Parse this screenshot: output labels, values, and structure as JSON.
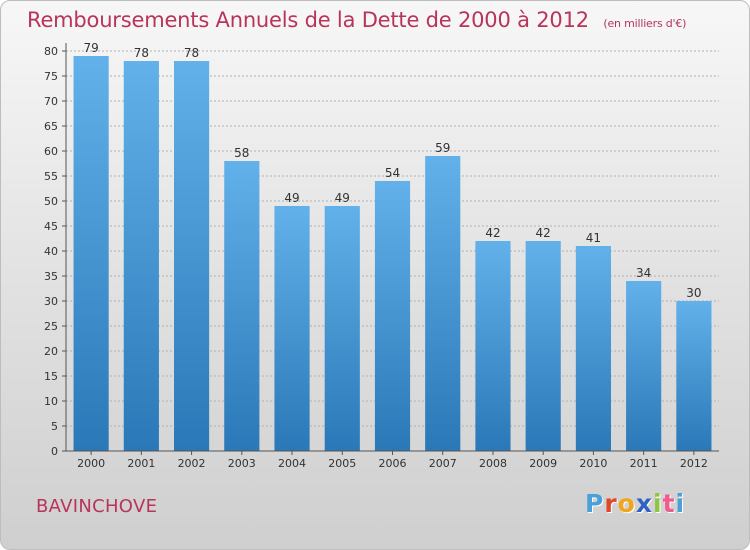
{
  "header": {
    "title": "Remboursements Annuels de la Dette de 2000 à 2012",
    "unit": "(en milliers d'€)"
  },
  "footer": {
    "place": "BAVINCHOVE",
    "logo": {
      "letters": [
        "P",
        "r",
        "o",
        "x",
        "i",
        "t",
        "i"
      ],
      "colors": [
        "#4aa0d8",
        "#e0462a",
        "#f0a51c",
        "#2f62c4",
        "#8dc63f",
        "#f05a8c",
        "#4aa0d8"
      ]
    }
  },
  "colors": {
    "title": "#b8345a",
    "bar_light": "#62b1ea",
    "bar_dark": "#2a78b7",
    "axis": "#555555",
    "grid": "#b0b0b0"
  },
  "chart_data": {
    "type": "bar",
    "title": "Remboursements Annuels de la Dette de 2000 à 2012",
    "xlabel": "",
    "ylabel": "",
    "categories": [
      "2000",
      "2001",
      "2002",
      "2003",
      "2004",
      "2005",
      "2006",
      "2007",
      "2008",
      "2009",
      "2010",
      "2011",
      "2012"
    ],
    "values": [
      79,
      78,
      78,
      58,
      49,
      49,
      54,
      59,
      42,
      42,
      41,
      34,
      30
    ],
    "ylim": [
      0,
      80
    ],
    "ytick_step": 5,
    "grid": true,
    "data_labels": true
  }
}
